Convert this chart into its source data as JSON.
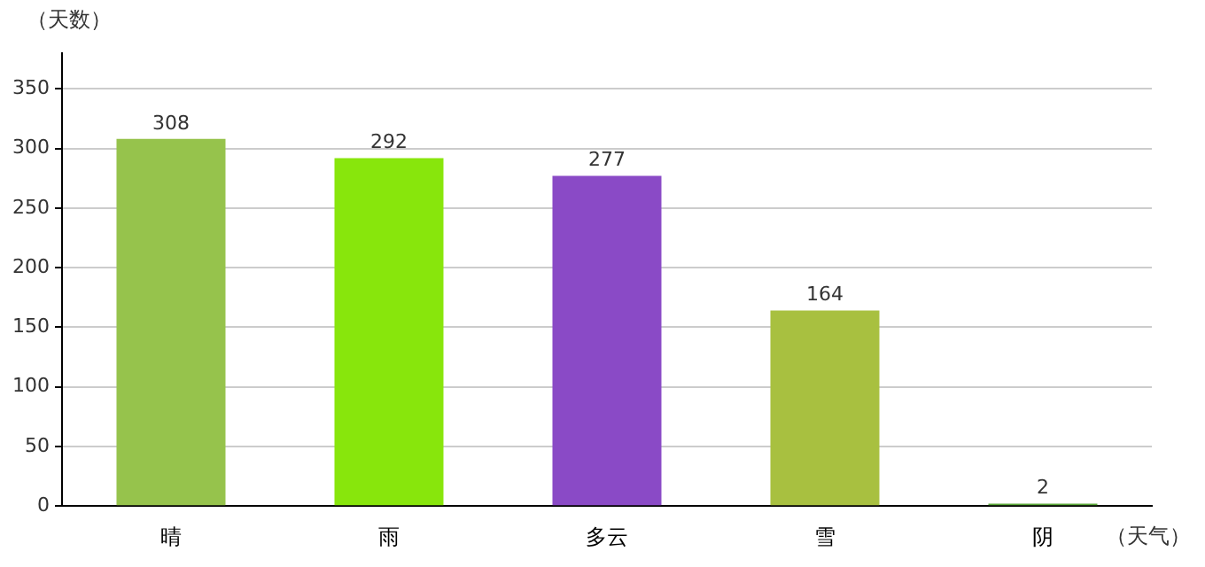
{
  "chart_data": {
    "type": "bar",
    "xlabel": "（天气）",
    "ylabel": "（天数）",
    "categories": [
      "晴",
      "雨",
      "多云",
      "雪",
      "阴"
    ],
    "values": [
      308,
      292,
      277,
      164,
      2
    ],
    "colors": [
      "#96c34c",
      "#88e60c",
      "#8a4ac6",
      "#a8c040",
      "#5aa838"
    ],
    "ylim": [
      0,
      380
    ],
    "yticks": [
      0,
      50,
      100,
      150,
      200,
      250,
      300,
      350
    ],
    "grid": "y",
    "data_labels": true,
    "legend": false
  }
}
